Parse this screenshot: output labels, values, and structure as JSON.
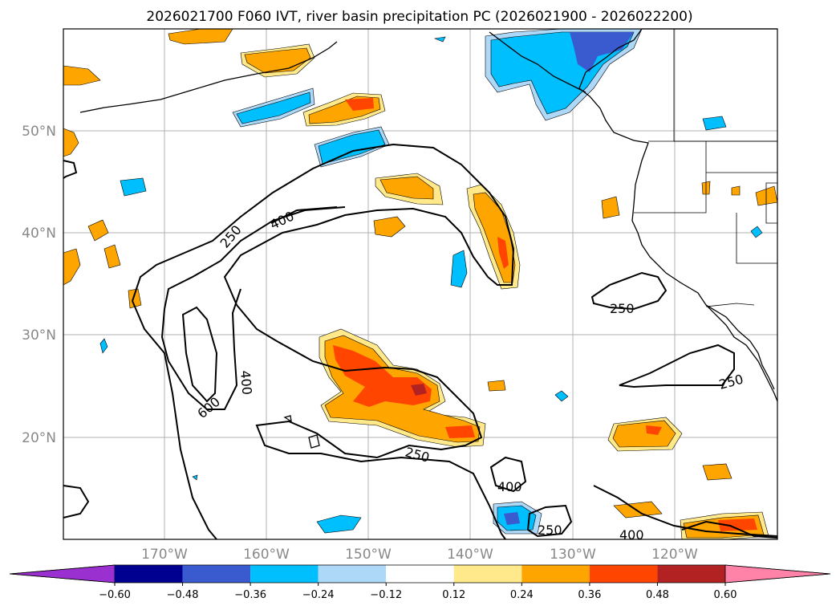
{
  "title": "2026021700 F060 IVT, river basin precipitation PC (2026021900 - 2026022200)",
  "lat_labels": [
    "50°N",
    "40°N",
    "30°N",
    "20°N"
  ],
  "lon_labels": [
    "170°W",
    "160°W",
    "150°W",
    "140°W",
    "130°W",
    "120°W"
  ],
  "contour_labels": [
    "250",
    "400",
    "600",
    "400",
    "250",
    "250",
    "250",
    "400",
    "250",
    "400"
  ],
  "colorbar": {
    "ticks": [
      "−0.60",
      "−0.48",
      "−0.36",
      "−0.24",
      "−0.12",
      "0.12",
      "0.24",
      "0.36",
      "0.48",
      "0.60"
    ],
    "colors": [
      "#9b30d0",
      "#000090",
      "#3a5bd0",
      "#00bfff",
      "#add8f8",
      "#ffffff",
      "#ffe98a",
      "#ffa500",
      "#ff4500",
      "#b22222",
      "#ff82a8"
    ]
  },
  "map": {
    "land_color": "#ffffff",
    "coast_color": "#000000",
    "grid_color": "#b0b0b0"
  }
}
